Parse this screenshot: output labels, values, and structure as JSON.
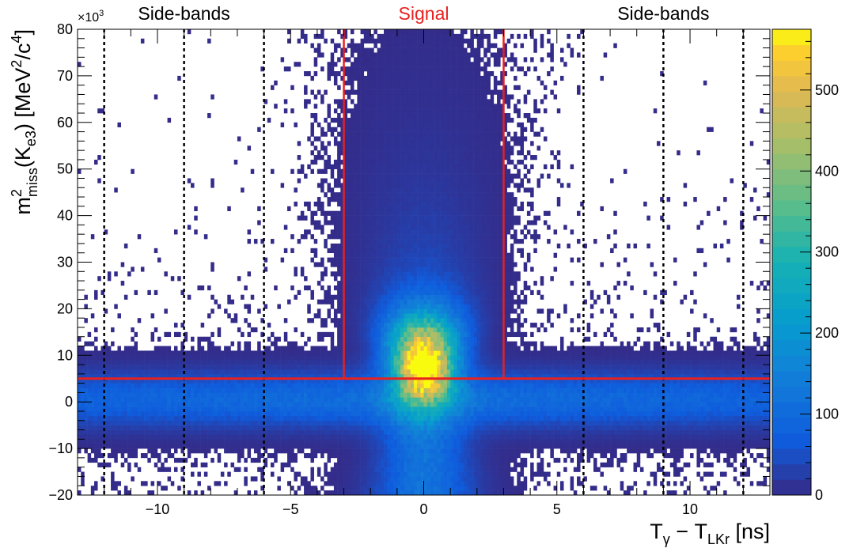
{
  "chart_data": {
    "type": "heatmap",
    "x_range": [
      -13,
      13
    ],
    "y_range": [
      -20,
      80
    ],
    "y_multiplier_label": "×10",
    "y_multiplier_exp": "3",
    "x_ticks": [
      -10,
      -5,
      0,
      5,
      10
    ],
    "y_ticks": [
      -20,
      -10,
      0,
      10,
      20,
      30,
      40,
      50,
      60,
      70,
      80
    ],
    "z_range": [
      0,
      575
    ],
    "z_ticks": [
      0,
      100,
      200,
      300,
      400,
      500
    ],
    "x_label": {
      "main": "T",
      "sub1": "γ",
      "mid": " − T",
      "sub2": "LKr",
      "tail": " [ns]"
    },
    "y_label": {
      "m": "m",
      "sup2": "2",
      "subMiss": "miss",
      "paren": "(K",
      "subE3": "e3",
      "units": ") [MeV",
      "sup2b": "2",
      "slash": "/c",
      "sup4": "4",
      "close": "]"
    },
    "regions": [
      {
        "label": "Side-bands",
        "color": "#000000",
        "x_center": -9
      },
      {
        "label": "Signal",
        "color": "#e8201e",
        "x_center": 0
      },
      {
        "label": "Side-bands",
        "color": "#000000",
        "x_center": 9
      }
    ],
    "signal_window_x": [
      -3,
      3
    ],
    "horizontal_cut_y": 5,
    "sideband_dashed_x": [
      -12,
      -9,
      -6,
      6,
      9,
      12
    ],
    "distribution": {
      "signal_peak": {
        "x": 0,
        "y": 8,
        "max_count": 560
      },
      "band_center_y": 0.5,
      "band_width_y": 4,
      "x_bins": 208,
      "y_bins": 100
    },
    "colors": {
      "cut_line": "#e8201e",
      "frame": "#000000"
    }
  }
}
